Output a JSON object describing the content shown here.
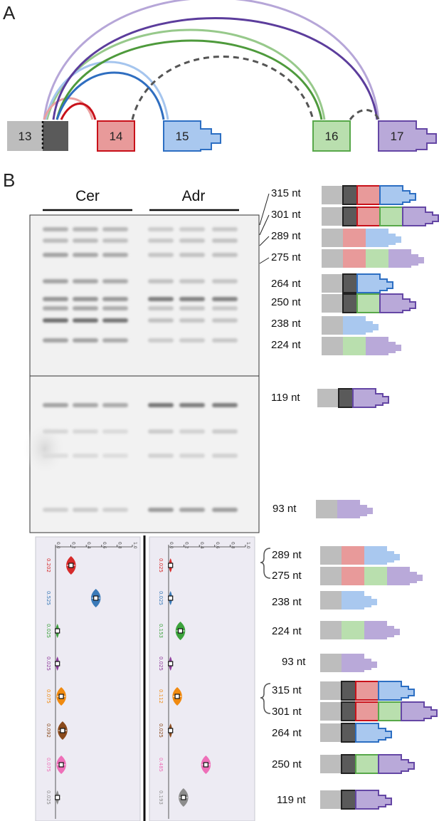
{
  "panel_a": {
    "label": "A",
    "exons": [
      "13",
      "14",
      "15",
      "16",
      "17"
    ]
  },
  "panel_b": {
    "label": "B",
    "lanes": [
      "Cer",
      "Adr"
    ],
    "gel_bands": [
      "315 nt",
      "301 nt",
      "289 nt",
      "275 nt",
      "264 nt",
      "250 nt",
      "238 nt",
      "224 nt",
      "119 nt",
      "93 nt"
    ],
    "violin_axis_ticks": [
      "0.0",
      "0.2",
      "0.4",
      "0.6",
      "0.8",
      "1.0"
    ],
    "violin_values": {
      "Cer": [
        "0.202",
        "0.525",
        "0.025",
        "0.025",
        "0.075",
        "0.092",
        "0.075",
        "0.025"
      ],
      "Adr": [
        "0.025",
        "0.025",
        "0.153",
        "0.025",
        "0.112",
        "0.025",
        "0.485",
        "0.193"
      ]
    },
    "violin_colors": [
      "#d62a2a",
      "#3a7ab8",
      "#3ca23c",
      "#8e3c9c",
      "#f08a10",
      "#8a4a1c",
      "#ee6fb8",
      "#8c8c8c"
    ],
    "legend_bands": [
      "289 nt",
      "275 nt",
      "238 nt",
      "224 nt",
      "93 nt",
      "315 nt",
      "301 nt",
      "264 nt",
      "250 nt",
      "119 nt"
    ]
  },
  "colors": {
    "exon13": "#bdbdbd",
    "exon13b": "#5a5a5a",
    "exon14": "#e89a9a",
    "exon14_border": "#c8111a",
    "exon15": "#a9c8ef",
    "exon15_border": "#2d6fc3",
    "exon16": "#b9dfae",
    "exon16_border": "#58a84a",
    "exon17": "#b9a9d9",
    "exon17_border": "#6547a5"
  }
}
